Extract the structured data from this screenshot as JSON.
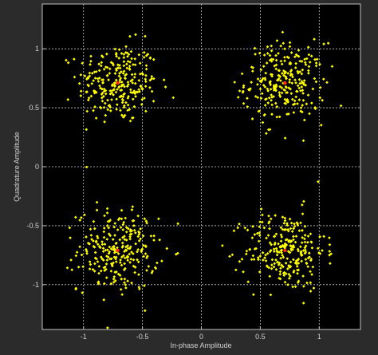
{
  "chart_data": {
    "type": "scatter",
    "title": "",
    "xlabel": "In-phase Amplitude",
    "ylabel": "Quadrature Amplitude",
    "xlim": [
      -1.35,
      1.35
    ],
    "ylim": [
      -1.38,
      1.38
    ],
    "xticks": [
      -1,
      -0.5,
      0,
      0.5,
      1
    ],
    "xtick_labels": [
      "-1",
      "-0.5",
      "0",
      "0.5",
      "1"
    ],
    "yticks": [
      -1,
      -0.5,
      0,
      0.5,
      1
    ],
    "ytick_labels": [
      "-1",
      "-0.5",
      "0",
      "0.5",
      "1"
    ],
    "grid": true,
    "legend": "none",
    "series": [
      {
        "color": "#ffff00",
        "points_per_cluster": 260,
        "clusters": [
          {
            "cx": -0.71,
            "cy": 0.71,
            "sigma": 0.17
          },
          {
            "cx": 0.71,
            "cy": 0.71,
            "sigma": 0.17
          },
          {
            "cx": -0.71,
            "cy": -0.71,
            "sigma": 0.17
          },
          {
            "cx": 0.71,
            "cy": -0.71,
            "sigma": 0.17
          }
        ]
      },
      {
        "color": "#ff2a1a",
        "points": [
          {
            "x": -0.71,
            "y": 0.71
          },
          {
            "x": 0.71,
            "y": 0.71
          },
          {
            "x": -0.71,
            "y": -0.71
          },
          {
            "x": 0.71,
            "y": -0.71
          }
        ]
      }
    ]
  },
  "style": {
    "plot_bg": "#000000",
    "figure_bg": "#2b2b2b",
    "grid_color": "#c8c8c8",
    "axis_color": "#c0c0c0",
    "text_color": "#d0d0d0"
  }
}
